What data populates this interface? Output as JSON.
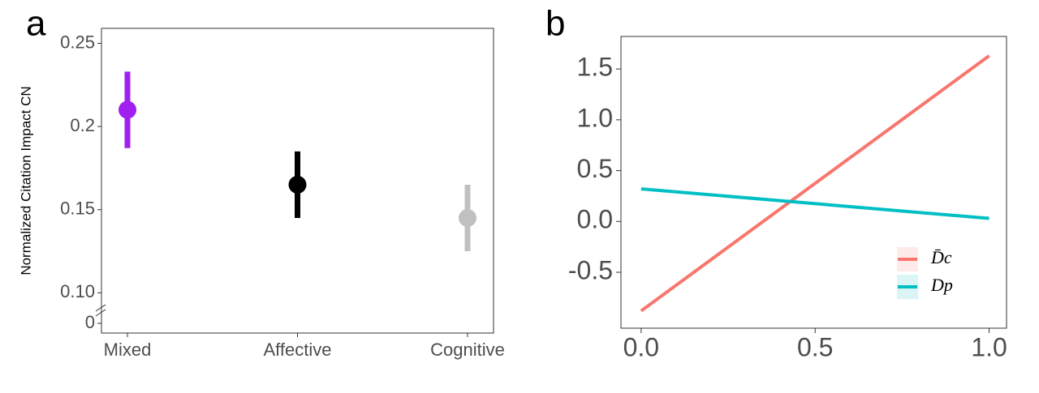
{
  "chart_data": [
    {
      "type": "errorpoint",
      "panel_label": "a",
      "ylabel": "Normalized Citation Impact CN",
      "categories": [
        "Mixed",
        "Affective",
        "Cognitive"
      ],
      "values": [
        0.21,
        0.165,
        0.145
      ],
      "errors": [
        0.023,
        0.02,
        0.02
      ],
      "colors": [
        "#a020f0",
        "#000000",
        "#c0c0c0"
      ],
      "ylim": [
        0.0958,
        0.259
      ],
      "yticks": [
        0.25,
        0.2,
        0.15,
        {
          "value": 0.1,
          "label": "0.10"
        }
      ],
      "axis_break_ticks": [
        0
      ]
    },
    {
      "type": "line",
      "panel_label": "b",
      "x": [
        0,
        1
      ],
      "series": [
        {
          "name": "D̄c",
          "color": "#f8766d",
          "values": [
            -0.88,
            1.63
          ]
        },
        {
          "name": "Dp",
          "color": "#00bfc4",
          "values": [
            0.32,
            0.03
          ]
        }
      ],
      "xlim": [
        -0.058,
        1.05
      ],
      "xticks": [
        {
          "value": 0,
          "label": "0.0"
        },
        0.5,
        {
          "value": 1,
          "label": "1.0"
        }
      ],
      "ylim": [
        -1.05,
        1.82
      ],
      "yticks": [
        1.5,
        {
          "value": 1,
          "label": "1.0"
        },
        0.5,
        {
          "value": 0,
          "label": "0.0"
        },
        -0.5
      ],
      "legend": "bottom-right"
    }
  ]
}
